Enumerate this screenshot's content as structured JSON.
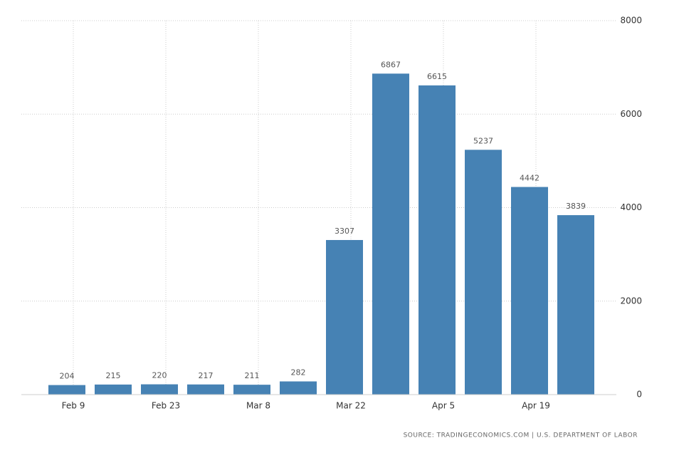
{
  "chart_data": {
    "type": "bar",
    "categories": [
      "Feb 9",
      null,
      "Feb 23",
      null,
      "Mar 8",
      null,
      "Mar 22",
      null,
      "Apr 5",
      null,
      "Apr 19",
      null
    ],
    "values": [
      204,
      215,
      220,
      217,
      211,
      282,
      3307,
      6867,
      6615,
      5237,
      4442,
      3839
    ],
    "color": "#4682b4",
    "ylim": [
      0,
      8000
    ],
    "yticks": [
      0,
      2000,
      4000,
      6000,
      8000
    ],
    "grid": true,
    "source": "SOURCE: TRADINGECONOMICS.COM | U.S. DEPARTMENT OF LABOR"
  }
}
